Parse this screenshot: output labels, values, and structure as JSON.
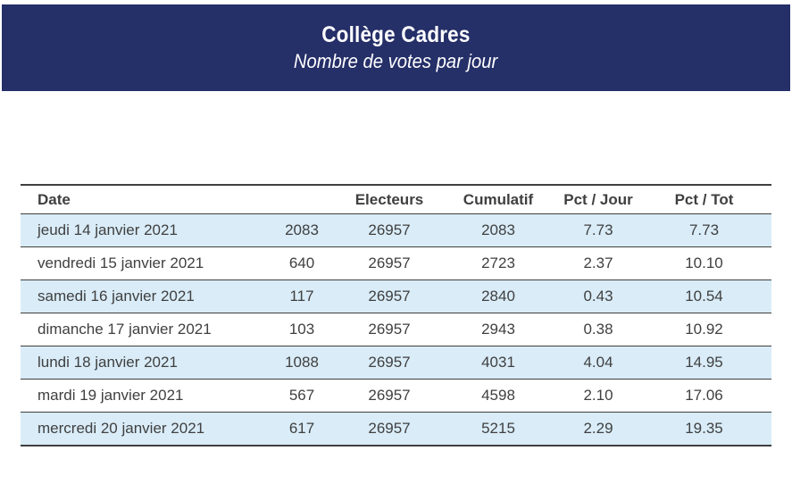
{
  "banner": {
    "title": "Collège Cadres",
    "subtitle": "Nombre de votes par jour",
    "background_color": "#252f68",
    "text_color": "#ffffff"
  },
  "table": {
    "headers": [
      "Date",
      "",
      "Electeurs",
      "Cumulatif",
      "Pct / Jour",
      "Pct / Tot"
    ],
    "header_names": [
      "date",
      "votes-jour",
      "electeurs",
      "cumulatif",
      "pct-jour",
      "pct-tot"
    ],
    "rows": [
      [
        "jeudi 14 janvier 2021",
        "2083",
        "26957",
        "2083",
        "7.73",
        "7.73"
      ],
      [
        "vendredi 15 janvier 2021",
        "640",
        "26957",
        "2723",
        "2.37",
        "10.10"
      ],
      [
        "samedi 16 janvier 2021",
        "117",
        "26957",
        "2840",
        "0.43",
        "10.54"
      ],
      [
        "dimanche 17 janvier 2021",
        "103",
        "26957",
        "2943",
        "0.38",
        "10.92"
      ],
      [
        "lundi 18 janvier 2021",
        "1088",
        "26957",
        "4031",
        "4.04",
        "14.95"
      ],
      [
        "mardi 19 janvier 2021",
        "567",
        "26957",
        "4598",
        "2.10",
        "17.06"
      ],
      [
        "mercredi 20 janvier 2021",
        "617",
        "26957",
        "5215",
        "2.29",
        "19.35"
      ]
    ],
    "zebra_row_color": "#d9ecf8",
    "border_color": "#3f3f3f",
    "text_color": "#404040"
  }
}
